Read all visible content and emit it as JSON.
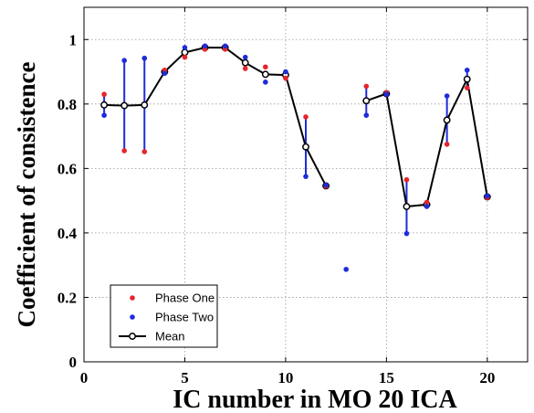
{
  "chart_data": {
    "type": "scatter",
    "title": "",
    "xlabel": "IC number in MO 20 ICA",
    "ylabel": "Coefficient of consistence",
    "xlim": [
      0,
      22
    ],
    "ylim": [
      0,
      1.1
    ],
    "xticks": [
      "0",
      "5",
      "10",
      "15",
      "20"
    ],
    "yticks": [
      "0",
      "0.2",
      "0.4",
      "0.6",
      "0.8",
      "1"
    ],
    "grid": true,
    "legend_position": "bottom-left",
    "series": [
      {
        "name": "Phase One",
        "color": "#e8232a",
        "marker": "asterisk",
        "points": [
          {
            "x": 1,
            "y": 0.83
          },
          {
            "x": 2,
            "y": 0.655
          },
          {
            "x": 3,
            "y": 0.652
          },
          {
            "x": 4,
            "y": 0.905
          },
          {
            "x": 5,
            "y": 0.945
          },
          {
            "x": 6,
            "y": 0.97
          },
          {
            "x": 7,
            "y": 0.97
          },
          {
            "x": 8,
            "y": 0.91
          },
          {
            "x": 9,
            "y": 0.915
          },
          {
            "x": 10,
            "y": 0.88
          },
          {
            "x": 11,
            "y": 0.76
          },
          {
            "x": 12,
            "y": 0.545
          },
          {
            "x": 14,
            "y": 0.855
          },
          {
            "x": 15,
            "y": 0.835
          },
          {
            "x": 16,
            "y": 0.565
          },
          {
            "x": 17,
            "y": 0.495
          },
          {
            "x": 18,
            "y": 0.675
          },
          {
            "x": 19,
            "y": 0.85
          },
          {
            "x": 20,
            "y": 0.51
          }
        ]
      },
      {
        "name": "Phase Two",
        "color": "#1f2bdb",
        "marker": "asterisk",
        "points": [
          {
            "x": 1,
            "y": 0.765
          },
          {
            "x": 2,
            "y": 0.935
          },
          {
            "x": 3,
            "y": 0.942
          },
          {
            "x": 4,
            "y": 0.895
          },
          {
            "x": 5,
            "y": 0.975
          },
          {
            "x": 6,
            "y": 0.98
          },
          {
            "x": 7,
            "y": 0.98
          },
          {
            "x": 8,
            "y": 0.945
          },
          {
            "x": 9,
            "y": 0.868
          },
          {
            "x": 10,
            "y": 0.9
          },
          {
            "x": 11,
            "y": 0.575
          },
          {
            "x": 12,
            "y": 0.548
          },
          {
            "x": 13,
            "y": 0.287
          },
          {
            "x": 14,
            "y": 0.765
          },
          {
            "x": 15,
            "y": 0.83
          },
          {
            "x": 16,
            "y": 0.398
          },
          {
            "x": 17,
            "y": 0.482
          },
          {
            "x": 18,
            "y": 0.825
          },
          {
            "x": 19,
            "y": 0.905
          },
          {
            "x": 20,
            "y": 0.515
          }
        ]
      },
      {
        "name": "Mean",
        "color": "#000000",
        "marker": "circle",
        "segments": [
          [
            {
              "x": 1,
              "y": 0.797
            },
            {
              "x": 2,
              "y": 0.795
            },
            {
              "x": 3,
              "y": 0.797
            },
            {
              "x": 4,
              "y": 0.9
            },
            {
              "x": 5,
              "y": 0.96
            },
            {
              "x": 6,
              "y": 0.975
            },
            {
              "x": 7,
              "y": 0.975
            },
            {
              "x": 8,
              "y": 0.928
            },
            {
              "x": 9,
              "y": 0.892
            },
            {
              "x": 10,
              "y": 0.89
            },
            {
              "x": 11,
              "y": 0.667
            },
            {
              "x": 12,
              "y": 0.546
            }
          ],
          [
            {
              "x": 14,
              "y": 0.81
            },
            {
              "x": 15,
              "y": 0.832
            },
            {
              "x": 16,
              "y": 0.482
            },
            {
              "x": 17,
              "y": 0.488
            },
            {
              "x": 18,
              "y": 0.75
            },
            {
              "x": 19,
              "y": 0.877
            },
            {
              "x": 20,
              "y": 0.512
            }
          ]
        ]
      }
    ],
    "error_bars": {
      "color": "#1f2bdb",
      "ranges": [
        {
          "x": 1,
          "low": 0.765,
          "high": 0.83
        },
        {
          "x": 2,
          "low": 0.655,
          "high": 0.935
        },
        {
          "x": 3,
          "low": 0.652,
          "high": 0.942
        },
        {
          "x": 11,
          "low": 0.575,
          "high": 0.76
        },
        {
          "x": 14,
          "low": 0.765,
          "high": 0.855
        },
        {
          "x": 16,
          "low": 0.398,
          "high": 0.565
        },
        {
          "x": 18,
          "low": 0.675,
          "high": 0.825
        },
        {
          "x": 19,
          "low": 0.85,
          "high": 0.905
        }
      ]
    }
  }
}
